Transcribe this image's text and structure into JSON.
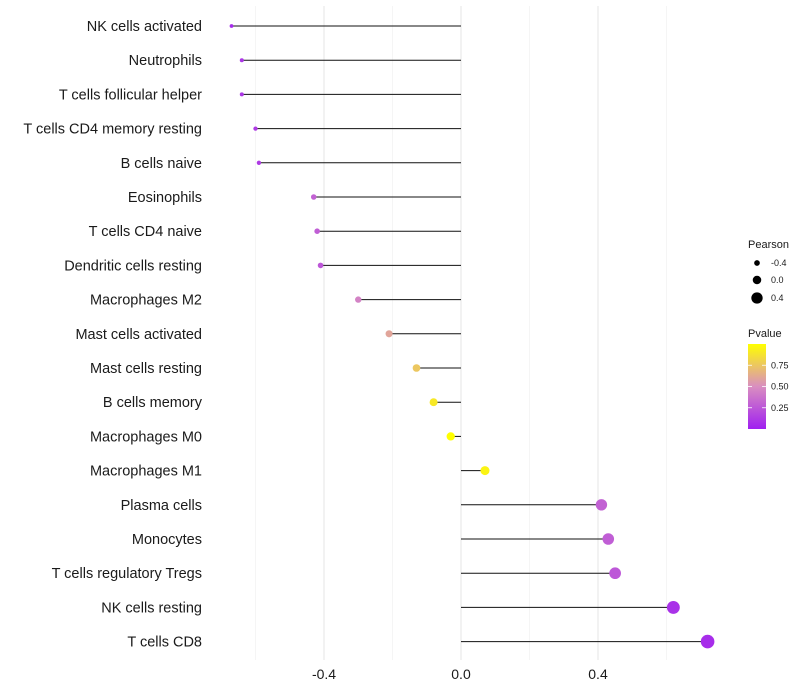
{
  "chart_data": {
    "type": "lollipop",
    "categories": [
      "NK cells activated",
      "Neutrophils",
      "T cells follicular helper",
      "T cells CD4 memory resting",
      "B cells naive",
      "Eosinophils",
      "T cells CD4 naive",
      "Dendritic cells resting",
      "Macrophages M2",
      "Mast cells activated",
      "Mast cells resting",
      "B cells memory",
      "Macrophages M0",
      "Macrophages M1",
      "Plasma cells",
      "Monocytes",
      "T cells regulatory  Tregs",
      "NK cells resting",
      "T cells CD8"
    ],
    "pearson": [
      -0.67,
      -0.64,
      -0.64,
      -0.6,
      -0.59,
      -0.43,
      -0.42,
      -0.41,
      -0.3,
      -0.21,
      -0.13,
      -0.08,
      -0.03,
      0.07,
      0.41,
      0.43,
      0.45,
      0.62,
      0.72
    ],
    "pvalue": [
      0.05,
      0.1,
      0.1,
      0.12,
      0.12,
      0.3,
      0.28,
      0.25,
      0.45,
      0.6,
      0.75,
      0.9,
      1.0,
      0.95,
      0.3,
      0.28,
      0.25,
      0.08,
      0.06
    ],
    "xlim": [
      -0.7,
      0.72
    ],
    "x_ticks": [
      -0.4,
      0.0,
      0.4
    ],
    "x_tick_labels": [
      "-0.4",
      "0.0",
      "0.4"
    ],
    "xlabel": "",
    "ylabel": "",
    "grid": true,
    "legend": {
      "size_title": "Pearson",
      "size_values": [
        -0.4,
        0.0,
        0.4
      ],
      "size_labels": [
        "-0.4",
        "0.0",
        "0.4"
      ],
      "color_title": "Pvalue",
      "color_ticks": [
        0.25,
        0.5,
        0.75
      ],
      "color_tick_labels": [
        "0.25",
        "0.50",
        "0.75"
      ],
      "color_low": "#a020f0",
      "color_mid": "#d98ec0",
      "color_high": "#ffff00",
      "placement": "right"
    }
  }
}
